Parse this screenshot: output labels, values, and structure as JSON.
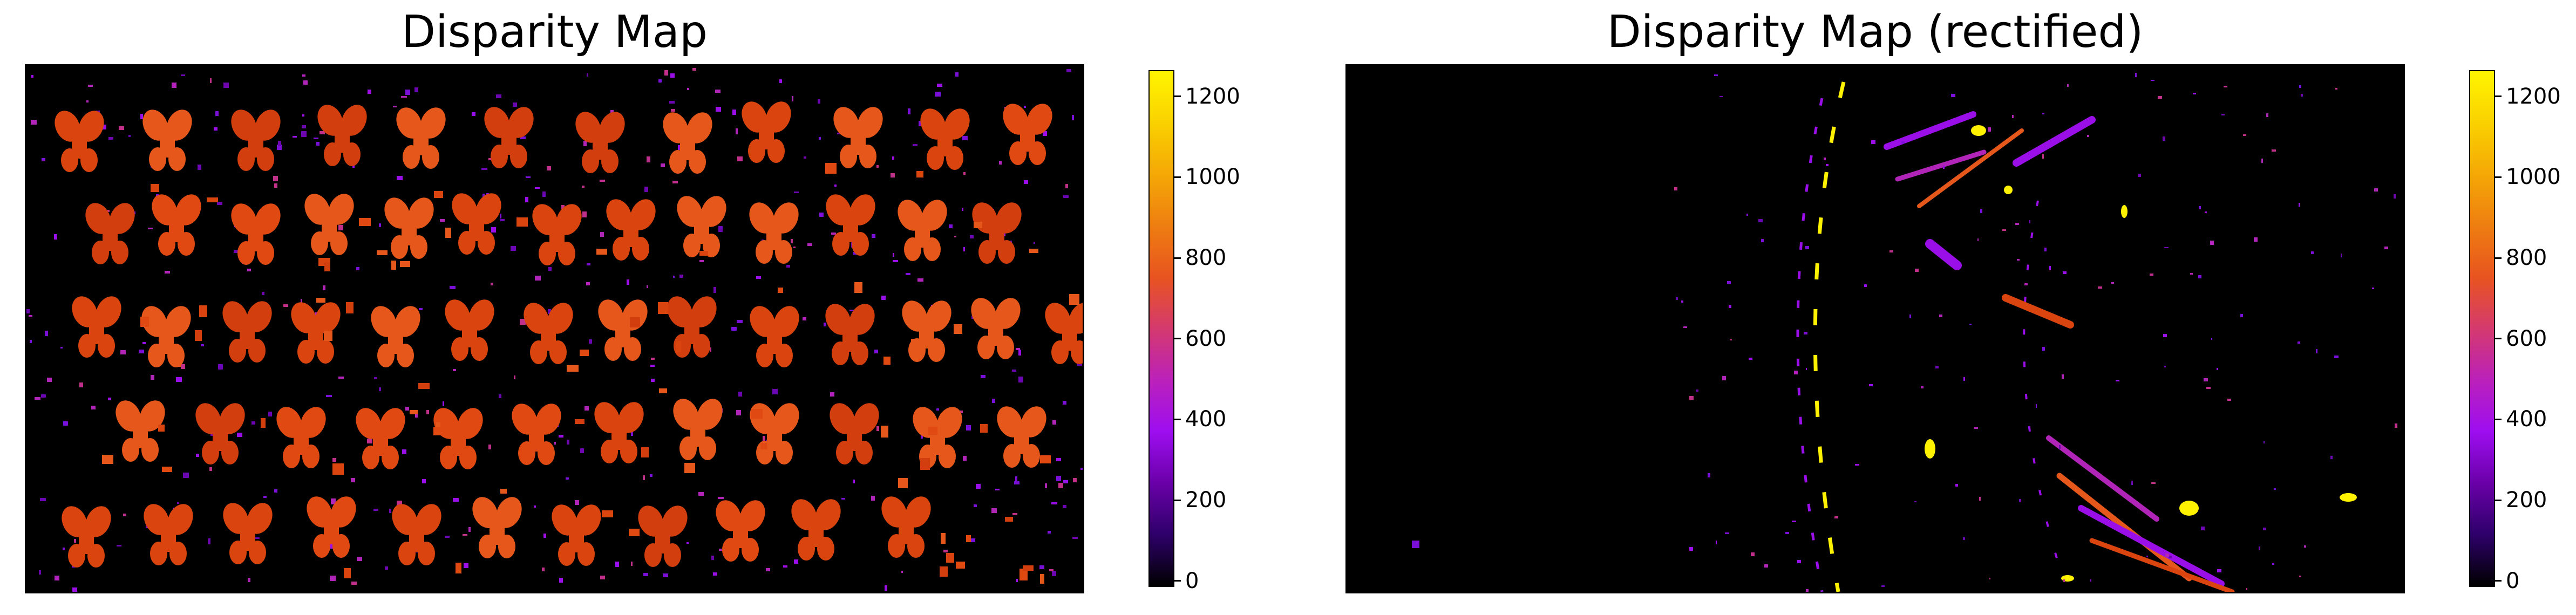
{
  "colormap_stops": [
    "#000000",
    "#2e006b",
    "#6a00a8",
    "#9e0ef0",
    "#bb21ba",
    "#d43a6e",
    "#e8541f",
    "#ee7e11",
    "#f5a806",
    "#fad100",
    "#fff500"
  ],
  "panel_bg": "#000000",
  "chart_data": [
    {
      "type": "heatmap",
      "title": "Disparity Map",
      "colorbar": {
        "min": -15,
        "max": 1265,
        "ticks": [
          0,
          200,
          400,
          600,
          800,
          1000,
          1200
        ],
        "tick_labels": [
          "0",
          "200",
          "400",
          "600",
          "800",
          "1000",
          "1200"
        ]
      },
      "axes_visible": false,
      "grid": false
    },
    {
      "type": "heatmap",
      "title": "Disparity Map (rectified)",
      "colorbar": {
        "min": -15,
        "max": 1265,
        "ticks": [
          0,
          200,
          400,
          600,
          800,
          1000,
          1200
        ],
        "tick_labels": [
          "0",
          "200",
          "400",
          "600",
          "800",
          "1000",
          "1200"
        ]
      },
      "axes_visible": false,
      "grid": false
    }
  ]
}
